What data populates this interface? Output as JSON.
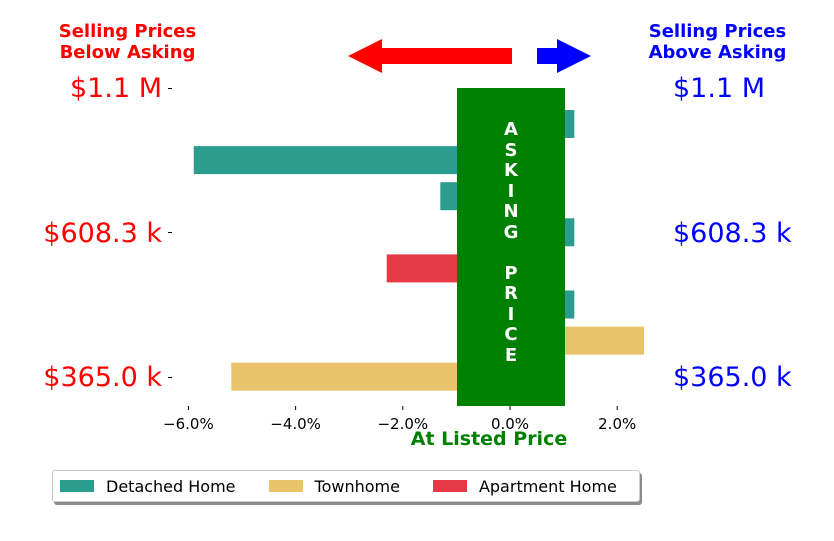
{
  "header": {
    "left_line1": "Selling Prices",
    "left_line2": "Below Asking",
    "right_line1": "Selling Prices",
    "right_line2": "Above Asking",
    "left_color": "#ff0000",
    "right_color": "#0000ff"
  },
  "price_labels": {
    "top": "$1.1 M",
    "middle": "$608.3 k",
    "bottom": "$365.0 k"
  },
  "asking_price_label": "A\nS\nK\nI\nN\nG\n\nP\nR\nI\nC\nE",
  "chart_data": {
    "type": "bar",
    "orientation": "horizontal",
    "xlabel": "At Listed Price",
    "xlim": [
      -6.5,
      2.5
    ],
    "xticks": [
      "−6.0%",
      "−4.0%",
      "−2.0%",
      "0.0%",
      "2.0%"
    ],
    "xtick_values": [
      -6,
      -4,
      -2,
      0,
      2
    ],
    "series": [
      {
        "name": "Detached Home",
        "color": "#2a9d8f"
      },
      {
        "name": "Townhome",
        "color": "#e9c46a"
      },
      {
        "name": "Apartment Home",
        "color": "#e63946"
      }
    ],
    "bars": [
      {
        "series": "Detached Home",
        "value": 1.2
      },
      {
        "series": "Detached Home",
        "value": -5.9
      },
      {
        "series": "Detached Home",
        "value": -1.3
      },
      {
        "series": "Detached Home",
        "value": 1.2
      },
      {
        "series": "Apartment Home",
        "value": -2.3
      },
      {
        "series": "Detached Home",
        "value": 1.2
      },
      {
        "series": "Townhome",
        "value": 2.5
      },
      {
        "series": "Townhome",
        "value": -5.2
      }
    ],
    "legend_position": "bottom",
    "grid": false
  },
  "arrows": {
    "left_color": "#ff0000",
    "right_color": "#0000ff"
  },
  "asking_box_color": "#008000"
}
